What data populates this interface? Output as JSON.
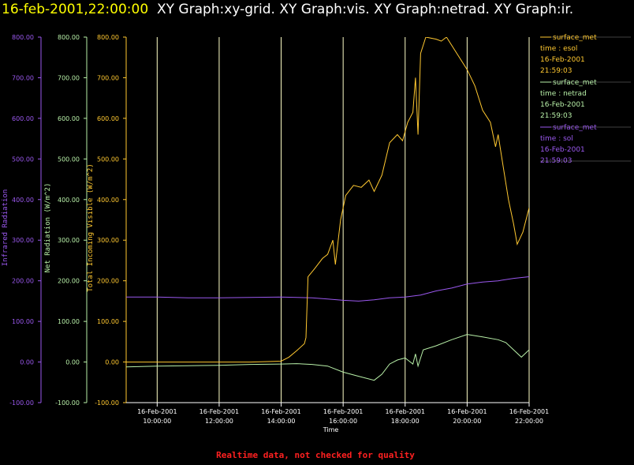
{
  "header": {
    "timestamp": "16-feb-2001,22:00:00",
    "graphs": "XY Graph:xy-grid.  XY Graph:vis.  XY Graph:netrad.  XY Graph:ir."
  },
  "footer": {
    "quality_note": "Realtime data, not checked for quality"
  },
  "colors": {
    "vis": "#ffc830",
    "netrad": "#b8f0a8",
    "ir": "#9a58ee",
    "grid": "#ffffc8",
    "note": "#ff2020"
  },
  "chart_data": {
    "type": "line",
    "xlabel": "Time",
    "xlim": [
      "2001-02-16 09:00",
      "2001-02-16 22:00"
    ],
    "x_ticks": [
      {
        "date": "16-Feb-2001",
        "time": "10:00:00"
      },
      {
        "date": "16-Feb-2001",
        "time": "12:00:00"
      },
      {
        "date": "16-Feb-2001",
        "time": "14:00:00"
      },
      {
        "date": "16-Feb-2001",
        "time": "16:00:00"
      },
      {
        "date": "16-Feb-2001",
        "time": "18:00:00"
      },
      {
        "date": "16-Feb-2001",
        "time": "20:00:00"
      },
      {
        "date": "16-Feb-2001",
        "time": "22:00:00"
      }
    ],
    "grid": "vertical",
    "ylim": [
      -100,
      800
    ],
    "y_ticks": [
      "-100.00",
      "0.00",
      "100.00",
      "200.00",
      "300.00",
      "400.00",
      "500.00",
      "600.00",
      "700.00",
      "800.00"
    ],
    "axes": [
      {
        "key": "ir",
        "label": "Infrared Radiation"
      },
      {
        "key": "netrad",
        "label": "Net Radiation (W/m^2)"
      },
      {
        "key": "vis",
        "label": "Total Incoming Visible (W/m^2)"
      }
    ],
    "legend": {
      "placement": "right"
    },
    "series": [
      {
        "key": "vis",
        "source": "surface_met",
        "time_var": "time : esol",
        "date": "16-Feb-2001",
        "time": "21:59:03",
        "points": [
          [
            "2001-02-16 09:00",
            0
          ],
          [
            "2001-02-16 10:00",
            0
          ],
          [
            "2001-02-16 11:00",
            0
          ],
          [
            "2001-02-16 12:00",
            0
          ],
          [
            "2001-02-16 13:00",
            0
          ],
          [
            "2001-02-16 14:00",
            2
          ],
          [
            "2001-02-16 14:15",
            12
          ],
          [
            "2001-02-16 14:30",
            28
          ],
          [
            "2001-02-16 14:45",
            45
          ],
          [
            "2001-02-16 14:48",
            60
          ],
          [
            "2001-02-16 14:52",
            210
          ],
          [
            "2001-02-16 15:05",
            230
          ],
          [
            "2001-02-16 15:20",
            255
          ],
          [
            "2001-02-16 15:30",
            265
          ],
          [
            "2001-02-16 15:40",
            300
          ],
          [
            "2001-02-16 15:45",
            240
          ],
          [
            "2001-02-16 15:55",
            350
          ],
          [
            "2001-02-16 16:05",
            410
          ],
          [
            "2001-02-16 16:20",
            435
          ],
          [
            "2001-02-16 16:35",
            430
          ],
          [
            "2001-02-16 16:50",
            448
          ],
          [
            "2001-02-16 17:00",
            420
          ],
          [
            "2001-02-16 17:15",
            460
          ],
          [
            "2001-02-16 17:30",
            540
          ],
          [
            "2001-02-16 17:45",
            560
          ],
          [
            "2001-02-16 17:55",
            545
          ],
          [
            "2001-02-16 18:05",
            590
          ],
          [
            "2001-02-16 18:15",
            615
          ],
          [
            "2001-02-16 18:20",
            700
          ],
          [
            "2001-02-16 18:25",
            560
          ],
          [
            "2001-02-16 18:30",
            760
          ],
          [
            "2001-02-16 18:40",
            800
          ],
          [
            "2001-02-16 19:00",
            795
          ],
          [
            "2001-02-16 19:10",
            790
          ],
          [
            "2001-02-16 19:20",
            800
          ],
          [
            "2001-02-16 19:40",
            760
          ],
          [
            "2001-02-16 20:00",
            720
          ],
          [
            "2001-02-16 20:15",
            680
          ],
          [
            "2001-02-16 20:30",
            620
          ],
          [
            "2001-02-16 20:45",
            590
          ],
          [
            "2001-02-16 20:55",
            530
          ],
          [
            "2001-02-16 21:00",
            560
          ],
          [
            "2001-02-16 21:10",
            480
          ],
          [
            "2001-02-16 21:20",
            400
          ],
          [
            "2001-02-16 21:30",
            340
          ],
          [
            "2001-02-16 21:37",
            290
          ],
          [
            "2001-02-16 21:48",
            320
          ],
          [
            "2001-02-16 22:00",
            380
          ]
        ]
      },
      {
        "key": "netrad",
        "source": "surface_met",
        "time_var": "time : netrad",
        "date": "16-Feb-2001",
        "time": "21:59:03",
        "points": [
          [
            "2001-02-16 09:00",
            -12
          ],
          [
            "2001-02-16 10:00",
            -10
          ],
          [
            "2001-02-16 11:00",
            -9
          ],
          [
            "2001-02-16 12:00",
            -8
          ],
          [
            "2001-02-16 13:00",
            -6
          ],
          [
            "2001-02-16 14:00",
            -5
          ],
          [
            "2001-02-16 14:30",
            -4
          ],
          [
            "2001-02-16 15:00",
            -6
          ],
          [
            "2001-02-16 15:30",
            -10
          ],
          [
            "2001-02-16 16:00",
            -25
          ],
          [
            "2001-02-16 16:30",
            -35
          ],
          [
            "2001-02-16 17:00",
            -45
          ],
          [
            "2001-02-16 17:15",
            -30
          ],
          [
            "2001-02-16 17:30",
            -5
          ],
          [
            "2001-02-16 17:45",
            5
          ],
          [
            "2001-02-16 18:00",
            10
          ],
          [
            "2001-02-16 18:15",
            -5
          ],
          [
            "2001-02-16 18:20",
            20
          ],
          [
            "2001-02-16 18:25",
            -10
          ],
          [
            "2001-02-16 18:35",
            30
          ],
          [
            "2001-02-16 19:00",
            40
          ],
          [
            "2001-02-16 19:30",
            55
          ],
          [
            "2001-02-16 20:00",
            68
          ],
          [
            "2001-02-16 20:30",
            62
          ],
          [
            "2001-02-16 21:00",
            55
          ],
          [
            "2001-02-16 21:15",
            48
          ],
          [
            "2001-02-16 21:30",
            30
          ],
          [
            "2001-02-16 21:45",
            12
          ],
          [
            "2001-02-16 22:00",
            30
          ]
        ]
      },
      {
        "key": "ir",
        "source": "surface_met",
        "time_var": "time : sol",
        "date": "16-Feb-2001",
        "time": "21:59:03",
        "points": [
          [
            "2001-02-16 09:00",
            160
          ],
          [
            "2001-02-16 10:00",
            160
          ],
          [
            "2001-02-16 11:00",
            158
          ],
          [
            "2001-02-16 12:00",
            158
          ],
          [
            "2001-02-16 13:00",
            159
          ],
          [
            "2001-02-16 14:00",
            160
          ],
          [
            "2001-02-16 15:00",
            158
          ],
          [
            "2001-02-16 15:30",
            155
          ],
          [
            "2001-02-16 16:00",
            152
          ],
          [
            "2001-02-16 16:30",
            150
          ],
          [
            "2001-02-16 17:00",
            153
          ],
          [
            "2001-02-16 17:30",
            158
          ],
          [
            "2001-02-16 18:00",
            160
          ],
          [
            "2001-02-16 18:30",
            165
          ],
          [
            "2001-02-16 19:00",
            175
          ],
          [
            "2001-02-16 19:30",
            182
          ],
          [
            "2001-02-16 20:00",
            192
          ],
          [
            "2001-02-16 20:30",
            197
          ],
          [
            "2001-02-16 21:00",
            200
          ],
          [
            "2001-02-16 21:30",
            206
          ],
          [
            "2001-02-16 22:00",
            210
          ]
        ]
      }
    ]
  }
}
